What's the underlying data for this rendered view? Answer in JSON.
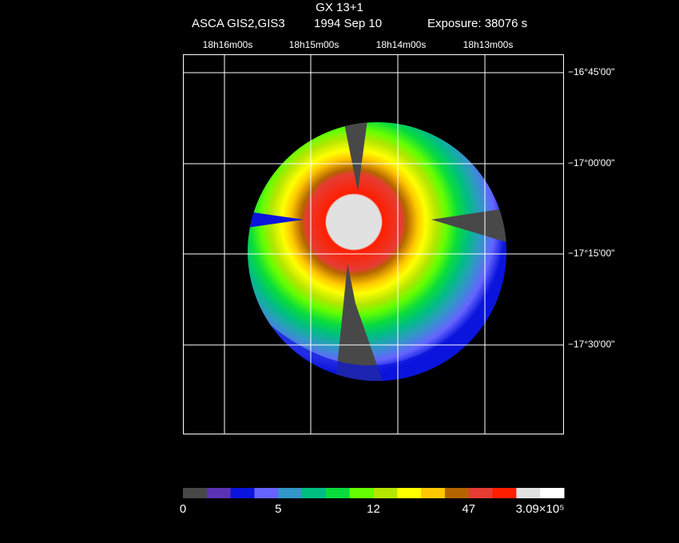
{
  "header": {
    "title": "GX 13+1",
    "instrument": "ASCA GIS2,GIS3",
    "date": "1994 Sep 10",
    "exposure": "Exposure: 38076 s"
  },
  "ra_labels": [
    "18h16m00s",
    "18h15m00s",
    "18h14m00s",
    "18h13m00s"
  ],
  "dec_labels": [
    "−16°45'00\"",
    "−17°00'00\"",
    "−17°15'00\"",
    "−17°30'00\""
  ],
  "colorbar": {
    "colors": [
      "#484848",
      "#5a32b4",
      "#0a14dc",
      "#6464ff",
      "#3296c8",
      "#00be82",
      "#0adc3c",
      "#64ff00",
      "#b4e600",
      "#ffff00",
      "#ffc800",
      "#b46400",
      "#e63c32",
      "#ff1e00",
      "#e1e1e1",
      "#ffffff"
    ],
    "labels": [
      "0",
      "5",
      "12",
      "47",
      "3.09×10⁵"
    ]
  }
}
